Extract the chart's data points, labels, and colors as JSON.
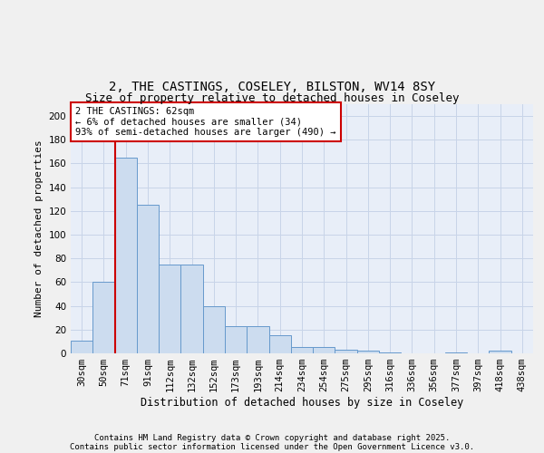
{
  "title": "2, THE CASTINGS, COSELEY, BILSTON, WV14 8SY",
  "subtitle": "Size of property relative to detached houses in Coseley",
  "xlabel": "Distribution of detached houses by size in Coseley",
  "ylabel": "Number of detached properties",
  "categories": [
    "30sqm",
    "50sqm",
    "71sqm",
    "91sqm",
    "112sqm",
    "132sqm",
    "152sqm",
    "173sqm",
    "193sqm",
    "214sqm",
    "234sqm",
    "254sqm",
    "275sqm",
    "295sqm",
    "316sqm",
    "336sqm",
    "356sqm",
    "377sqm",
    "397sqm",
    "418sqm",
    "438sqm"
  ],
  "values": [
    11,
    60,
    165,
    125,
    75,
    75,
    40,
    23,
    23,
    15,
    5,
    5,
    3,
    2,
    1,
    0,
    0,
    1,
    0,
    2,
    0
  ],
  "bar_color": "#ccdcef",
  "bar_edge_color": "#6699cc",
  "red_line_color": "#cc0000",
  "red_line_x": 1.5,
  "annotation_text": "2 THE CASTINGS: 62sqm\n← 6% of detached houses are smaller (34)\n93% of semi-detached houses are larger (490) →",
  "annotation_box_facecolor": "#ffffff",
  "annotation_box_edgecolor": "#cc0000",
  "ylim": [
    0,
    210
  ],
  "yticks": [
    0,
    20,
    40,
    60,
    80,
    100,
    120,
    140,
    160,
    180,
    200
  ],
  "grid_color": "#c8d4e8",
  "bg_color": "#e8eef8",
  "fig_bg_color": "#f0f0f0",
  "footer_line1": "Contains HM Land Registry data © Crown copyright and database right 2025.",
  "footer_line2": "Contains public sector information licensed under the Open Government Licence v3.0.",
  "title_fontsize": 10,
  "subtitle_fontsize": 9,
  "xlabel_fontsize": 8.5,
  "ylabel_fontsize": 8,
  "tick_fontsize": 7.5,
  "annotation_fontsize": 7.5,
  "footer_fontsize": 6.5
}
